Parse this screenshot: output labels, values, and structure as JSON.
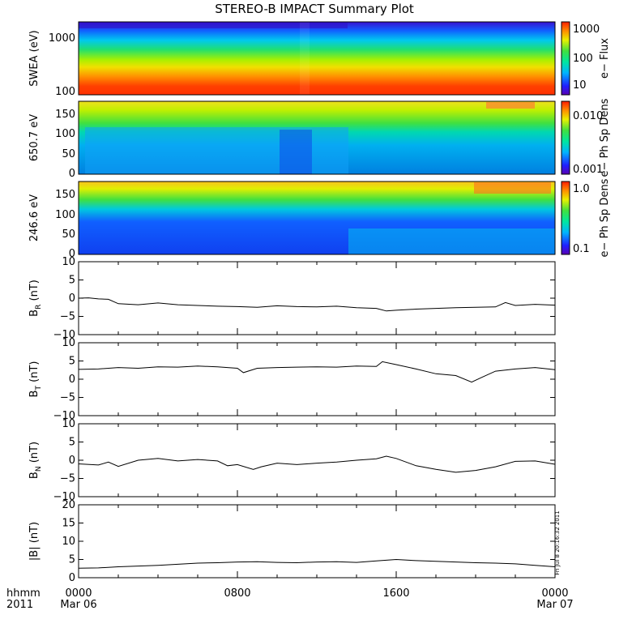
{
  "chart_data": {
    "title": "STEREO-B IMPACT Summary Plot",
    "x_ticks": [
      "0000",
      "0800",
      "1600",
      "0000"
    ],
    "x_dates": [
      "Mar 06",
      "Mar 07"
    ],
    "x_corner_labels": [
      "hhmm",
      "2011"
    ],
    "timestamp": "Fri Jul 8 20:16:32 2011",
    "panels": [
      {
        "type": "heatmap",
        "ylabel": "SWEA (eV)",
        "ytick_labels": [
          "1000",
          "100"
        ],
        "colorbar_label": "e− Flux",
        "colorbar_ticks": [
          "1000",
          "100",
          "10"
        ]
      },
      {
        "type": "heatmap",
        "ylabel": "650.7 eV",
        "ytick_labels": [
          "150",
          "100",
          "50",
          "0"
        ],
        "colorbar_label": "e− Ph Sp Dens",
        "colorbar_ticks": [
          "0.010",
          "0.001"
        ]
      },
      {
        "type": "heatmap",
        "ylabel": "246.6 eV",
        "ytick_labels": [
          "150",
          "100",
          "50",
          "0"
        ],
        "colorbar_label": "e− Ph Sp Dens",
        "colorbar_ticks": [
          "1.0",
          "0.1"
        ]
      },
      {
        "type": "line",
        "ylabel_main": "B",
        "ylabel_sub": "R",
        "ylabel_unit": " (nT)",
        "ylim": [
          -10,
          10
        ],
        "ytick_labels": [
          "10",
          "5",
          "0",
          "−5",
          "−10"
        ],
        "x": [
          0,
          0.5,
          1,
          1.5,
          2,
          3,
          4,
          5,
          6,
          7,
          8,
          9,
          10,
          11,
          12,
          13,
          14,
          15,
          15.5,
          16,
          17,
          18,
          19,
          20,
          21,
          21.5,
          22,
          23,
          24
        ],
        "values": [
          0,
          0.1,
          -0.2,
          -0.3,
          -1.5,
          -1.8,
          -1.3,
          -1.8,
          -2,
          -2.2,
          -2.3,
          -2.5,
          -2.1,
          -2.3,
          -2.4,
          -2.2,
          -2.6,
          -2.8,
          -3.5,
          -3.3,
          -3,
          -2.8,
          -2.6,
          -2.5,
          -2.4,
          -1.2,
          -2,
          -1.7,
          -1.9
        ]
      },
      {
        "type": "line",
        "ylabel_main": "B",
        "ylabel_sub": "T",
        "ylabel_unit": " (nT)",
        "ylim": [
          -10,
          10
        ],
        "ytick_labels": [
          "10",
          "5",
          "0",
          "−5",
          "−10"
        ],
        "x": [
          0,
          1,
          2,
          3,
          4,
          5,
          6,
          7,
          8,
          8.3,
          9,
          10,
          11,
          12,
          13,
          14,
          15,
          15.3,
          16,
          17,
          18,
          19,
          19.8,
          20.3,
          21,
          22,
          23,
          24
        ],
        "values": [
          2.7,
          2.8,
          3.2,
          3,
          3.4,
          3.3,
          3.6,
          3.4,
          3,
          1.8,
          3,
          3.2,
          3.3,
          3.4,
          3.3,
          3.6,
          3.5,
          4.8,
          4,
          2.8,
          1.5,
          1,
          -0.8,
          0.5,
          2.2,
          2.8,
          3.2,
          2.6
        ]
      },
      {
        "type": "line",
        "ylabel_main": "B",
        "ylabel_sub": "N",
        "ylabel_unit": " (nT)",
        "ylim": [
          -10,
          10
        ],
        "ytick_labels": [
          "10",
          "5",
          "0",
          "−5",
          "−10"
        ],
        "x": [
          0,
          1,
          1.5,
          2,
          3,
          4,
          5,
          6,
          7,
          7.5,
          8,
          8.8,
          9.2,
          10,
          11,
          12,
          13,
          14,
          15,
          15.5,
          16,
          17,
          18,
          19,
          20,
          21,
          22,
          23,
          24
        ],
        "values": [
          -1,
          -1.3,
          -0.5,
          -1.7,
          0,
          0.5,
          -0.2,
          0.2,
          -0.2,
          -1.5,
          -1.2,
          -2.5,
          -1.8,
          -0.8,
          -1.2,
          -0.8,
          -0.5,
          0,
          0.4,
          1.1,
          0.5,
          -1.5,
          -2.5,
          -3.3,
          -2.8,
          -1.8,
          -0.3,
          -0.2,
          -1.1
        ]
      },
      {
        "type": "line",
        "ylabel_main": "|B|",
        "ylabel_sub": "",
        "ylabel_unit": " (nT)",
        "ylim": [
          0,
          20
        ],
        "ytick_labels": [
          "20",
          "15",
          "10",
          "5",
          "0"
        ],
        "x": [
          0,
          1,
          2,
          3,
          4,
          5,
          6,
          7,
          8,
          9,
          10,
          11,
          12,
          13,
          14,
          15,
          16,
          17,
          18,
          19,
          20,
          21,
          22,
          23,
          24
        ],
        "values": [
          2.6,
          2.7,
          3,
          3.2,
          3.4,
          3.7,
          4,
          4.1,
          4.3,
          4.4,
          4.2,
          4.1,
          4.3,
          4.4,
          4.2,
          4.6,
          5,
          4.7,
          4.5,
          4.3,
          4.1,
          4,
          3.8,
          3.4,
          3
        ]
      }
    ]
  }
}
